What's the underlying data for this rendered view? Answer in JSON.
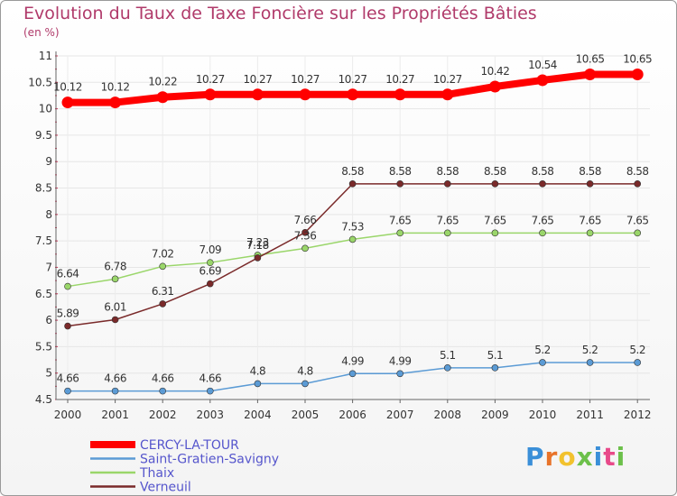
{
  "header": {
    "title": "Evolution du Taux de Taxe Foncière sur les Propriétés Bâties",
    "unit": "(en %)"
  },
  "brand": {
    "text": "Proxiti"
  },
  "chart_data": {
    "type": "line",
    "title": "Evolution du Taux de Taxe Foncière sur les Propriétés Bâties",
    "ylabel": "(en %)",
    "xlabel": "",
    "ylim": [
      4.5,
      11
    ],
    "y_ticks": [
      4.5,
      5,
      5.5,
      6,
      6.5,
      7,
      7.5,
      8,
      8.5,
      9,
      9.5,
      10,
      10.5,
      11
    ],
    "y_tick_labels": [
      "4.5",
      "5",
      "5.5",
      "6",
      "6.5",
      "7",
      "7.5",
      "8",
      "8.5",
      "9",
      "9.5",
      "10",
      "10.5",
      "11"
    ],
    "categories": [
      "2000",
      "2001",
      "2002",
      "2003",
      "2004",
      "2005",
      "2006",
      "2007",
      "2008",
      "2009",
      "2010",
      "2011",
      "2012"
    ],
    "grid": true,
    "series": [
      {
        "name": "CERCY-LA-TOUR",
        "color": "#ff0000",
        "values": [
          10.12,
          10.12,
          10.22,
          10.27,
          10.27,
          10.27,
          10.27,
          10.27,
          10.27,
          10.42,
          10.54,
          10.65,
          10.65
        ],
        "labels": [
          "10.12",
          "10.12",
          "10.22",
          "10.27",
          "10.27",
          "10.27",
          "10.27",
          "10.27",
          "10.27",
          "10.42",
          "10.54",
          "10.65",
          "10.65"
        ]
      },
      {
        "name": "Saint-Gratien-Savigny",
        "color": "#5b9bd5",
        "values": [
          4.66,
          4.66,
          4.66,
          4.66,
          4.8,
          4.8,
          4.99,
          4.99,
          5.1,
          5.1,
          5.2,
          5.2,
          5.2
        ],
        "labels": [
          "4.66",
          "4.66",
          "4.66",
          "4.66",
          "4.8",
          "4.8",
          "4.99",
          "4.99",
          "5.1",
          "5.1",
          "5.2",
          "5.2",
          "5.2"
        ]
      },
      {
        "name": "Thaix",
        "color": "#9ad66a",
        "values": [
          6.64,
          6.78,
          7.02,
          7.09,
          7.23,
          7.36,
          7.53,
          7.65,
          7.65,
          7.65,
          7.65,
          7.65,
          7.65
        ],
        "labels": [
          "6.64",
          "6.78",
          "7.02",
          "7.09",
          "7.23",
          "7.36",
          "7.53",
          "7.65",
          "7.65",
          "7.65",
          "7.65",
          "7.65",
          "7.65"
        ]
      },
      {
        "name": "Verneuil",
        "color": "#7a2a2a",
        "values": [
          5.89,
          6.01,
          6.31,
          6.69,
          7.18,
          7.66,
          8.58,
          8.58,
          8.58,
          8.58,
          8.58,
          8.58,
          8.58
        ],
        "labels": [
          "5.89",
          "6.01",
          "6.31",
          "6.69",
          "7.18",
          "7.66",
          "8.58",
          "8.58",
          "8.58",
          "8.58",
          "8.58",
          "8.58",
          "8.58"
        ]
      }
    ],
    "legend_position": "bottom-left"
  }
}
